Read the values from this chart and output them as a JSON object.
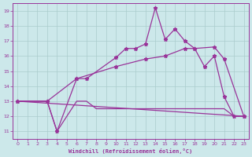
{
  "xlabel": "Windchill (Refroidissement éolien,°C)",
  "xlim": [
    -0.5,
    23.5
  ],
  "ylim": [
    10.5,
    19.5
  ],
  "xticks": [
    0,
    1,
    2,
    3,
    4,
    5,
    6,
    7,
    8,
    9,
    10,
    11,
    12,
    13,
    14,
    15,
    16,
    17,
    18,
    19,
    20,
    21,
    22,
    23
  ],
  "yticks": [
    11,
    12,
    13,
    14,
    15,
    16,
    17,
    18,
    19
  ],
  "bg_color": "#cce8ea",
  "grid_color": "#aacccc",
  "line_color": "#993399",
  "line1_x": [
    0,
    1,
    2,
    3,
    4,
    5,
    6,
    7,
    8,
    9,
    10,
    11,
    12,
    13,
    14,
    15,
    16,
    17,
    18,
    19,
    20,
    21,
    22,
    23
  ],
  "line1_y": [
    13.0,
    13.0,
    13.0,
    13.0,
    11.0,
    12.0,
    13.0,
    13.0,
    12.5,
    12.5,
    12.5,
    12.5,
    12.5,
    12.5,
    12.5,
    12.5,
    12.5,
    12.5,
    12.5,
    12.5,
    12.5,
    12.5,
    12.0,
    12.0
  ],
  "line2_x": [
    0,
    3,
    4,
    6,
    7,
    10,
    11,
    12,
    13,
    14,
    15,
    16,
    17,
    18,
    19,
    20,
    21,
    22,
    23
  ],
  "line2_y": [
    13.0,
    13.0,
    11.0,
    14.5,
    14.5,
    15.9,
    16.5,
    16.5,
    16.8,
    19.2,
    17.1,
    17.8,
    17.0,
    16.5,
    15.3,
    16.0,
    13.3,
    12.0,
    12.0
  ],
  "line3_x": [
    0,
    3,
    6,
    10,
    13,
    15,
    17,
    18,
    20,
    21,
    23
  ],
  "line3_y": [
    13.0,
    13.0,
    14.5,
    15.3,
    15.8,
    16.0,
    16.5,
    16.5,
    16.6,
    15.8,
    12.0
  ],
  "line4_x": [
    0,
    23
  ],
  "line4_y": [
    13.0,
    12.0
  ]
}
